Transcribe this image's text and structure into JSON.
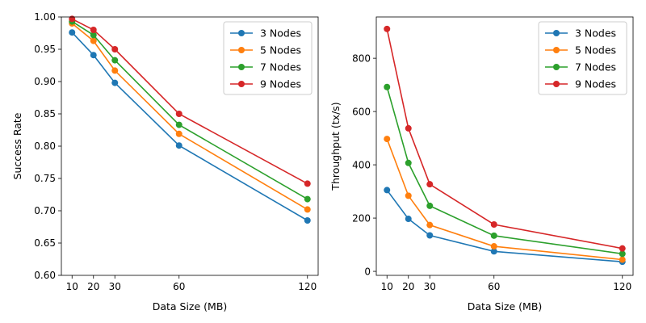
{
  "chart_data": [
    {
      "type": "line",
      "xlabel": "Data Size (MB)",
      "ylabel": "Success Rate",
      "x": [
        10,
        20,
        30,
        60,
        120
      ],
      "xlim": [
        5,
        125
      ],
      "ylim": [
        0.6,
        1.0
      ],
      "xticks": [
        10,
        20,
        30,
        60,
        120
      ],
      "yticks": [
        "0.60",
        "0.65",
        "0.70",
        "0.75",
        "0.80",
        "0.85",
        "0.90",
        "0.95",
        "1.00"
      ],
      "grid": false,
      "legend_position": "top-right",
      "series": [
        {
          "name": "3 Nodes",
          "color": "#1f77b4",
          "values": [
            0.976,
            0.941,
            0.898,
            0.801,
            0.685
          ]
        },
        {
          "name": "5 Nodes",
          "color": "#ff7f0e",
          "values": [
            0.99,
            0.963,
            0.917,
            0.819,
            0.702
          ]
        },
        {
          "name": "7 Nodes",
          "color": "#2ca02c",
          "values": [
            0.993,
            0.972,
            0.933,
            0.833,
            0.718
          ]
        },
        {
          "name": "9 Nodes",
          "color": "#d62728",
          "values": [
            0.997,
            0.98,
            0.95,
            0.85,
            0.742
          ]
        }
      ]
    },
    {
      "type": "line",
      "xlabel": "Data Size (MB)",
      "ylabel": "Throughput (tx/s)",
      "x": [
        10,
        20,
        30,
        60,
        120
      ],
      "xlim": [
        5,
        125
      ],
      "ylim": [
        -15,
        955
      ],
      "xticks": [
        10,
        20,
        30,
        60,
        120
      ],
      "yticks": [
        "0",
        "200",
        "400",
        "600",
        "800"
      ],
      "grid": false,
      "legend_position": "top-right",
      "series": [
        {
          "name": "3 Nodes",
          "color": "#1f77b4",
          "values": [
            305,
            197,
            135,
            75,
            36
          ]
        },
        {
          "name": "5 Nodes",
          "color": "#ff7f0e",
          "values": [
            497,
            284,
            174,
            94,
            44
          ]
        },
        {
          "name": "7 Nodes",
          "color": "#2ca02c",
          "values": [
            692,
            407,
            246,
            134,
            66
          ]
        },
        {
          "name": "9 Nodes",
          "color": "#d62728",
          "values": [
            910,
            537,
            327,
            176,
            86
          ]
        }
      ]
    }
  ]
}
